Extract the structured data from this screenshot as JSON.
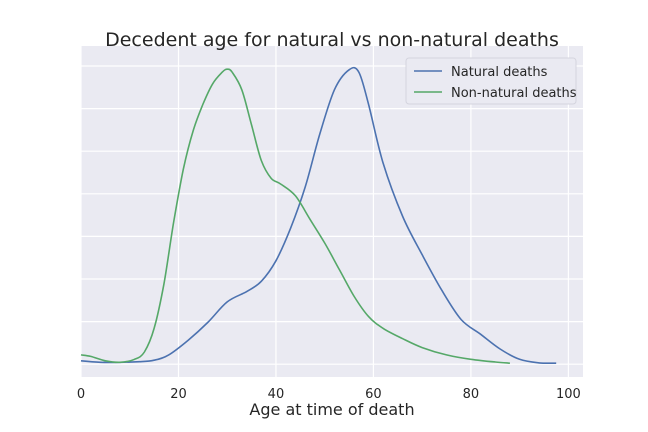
{
  "chart_data": {
    "type": "line",
    "title": "Decedent age for natural vs non-natural deaths",
    "xlabel": "Age at time of death",
    "ylabel": "",
    "xlim": [
      0,
      103
    ],
    "ylim": [
      0,
      1
    ],
    "xticks": [
      0,
      20,
      40,
      60,
      80,
      100
    ],
    "xtick_labels": [
      "0",
      "20",
      "40",
      "60",
      "80",
      "100"
    ],
    "y_tick_labels_shown": false,
    "grid": true,
    "background_color": "#EAEAF2",
    "legend_position": "top-right",
    "series": [
      {
        "name": "Natural deaths",
        "color": "#4C72B0",
        "x": [
          0,
          4,
          8,
          12,
          15,
          18,
          22,
          26,
          30,
          34,
          37,
          40,
          43,
          46,
          49,
          52,
          55,
          57,
          59,
          62,
          66,
          70,
          74,
          78,
          82,
          86,
          90,
          94,
          97.5
        ],
        "y": [
          0.01,
          0.005,
          0.005,
          0.007,
          0.012,
          0.03,
          0.08,
          0.14,
          0.21,
          0.245,
          0.28,
          0.35,
          0.46,
          0.6,
          0.78,
          0.93,
          0.998,
          0.99,
          0.88,
          0.68,
          0.5,
          0.37,
          0.25,
          0.15,
          0.1,
          0.05,
          0.015,
          0.003,
          0.002
        ]
      },
      {
        "name": "Non-natural deaths",
        "color": "#55A868",
        "x": [
          0,
          2,
          5,
          8,
          11,
          13,
          15,
          17,
          19,
          21,
          23,
          25,
          27,
          29,
          30,
          31,
          33,
          35,
          37,
          39,
          41,
          44,
          47,
          50,
          53,
          56,
          59,
          62,
          66,
          70,
          75,
          80,
          85,
          88
        ],
        "y": [
          0.03,
          0.025,
          0.01,
          0.005,
          0.015,
          0.04,
          0.12,
          0.27,
          0.48,
          0.66,
          0.79,
          0.88,
          0.95,
          0.99,
          1.0,
          0.99,
          0.93,
          0.81,
          0.69,
          0.63,
          0.61,
          0.57,
          0.49,
          0.41,
          0.32,
          0.23,
          0.16,
          0.12,
          0.085,
          0.055,
          0.03,
          0.015,
          0.006,
          0.002
        ]
      }
    ]
  }
}
